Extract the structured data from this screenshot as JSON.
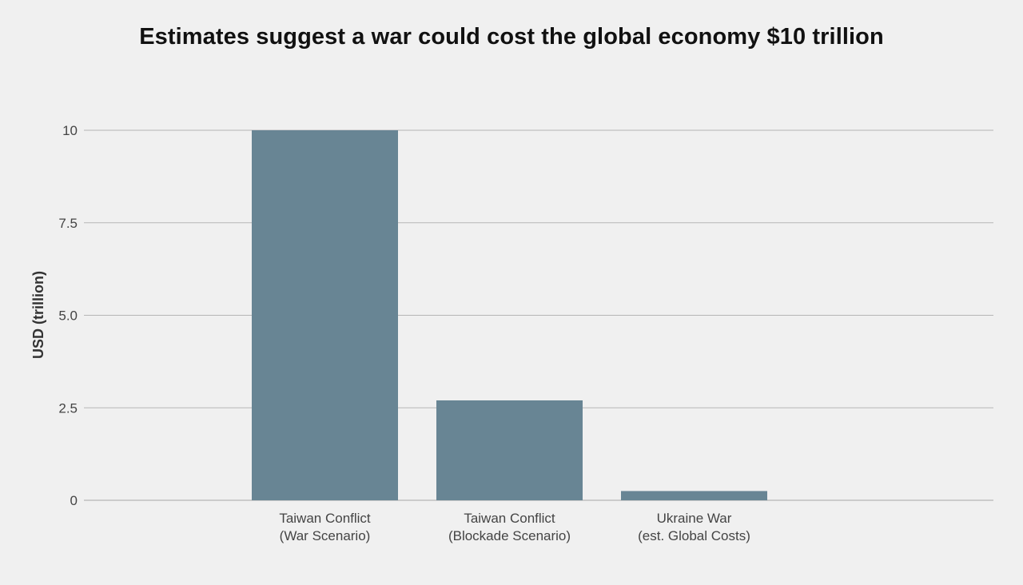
{
  "chart_data": {
    "type": "bar",
    "title": "Estimates suggest a war could cost the global economy $10 trillion",
    "xlabel": "",
    "ylabel": "USD (trillion)",
    "ylim": [
      0,
      10
    ],
    "yticks": [
      0,
      2.5,
      5.0,
      7.5,
      10
    ],
    "ytick_labels": [
      "0",
      "2.5",
      "5.0",
      "7.5",
      "10"
    ],
    "grid": true,
    "categories": [
      [
        "Taiwan Conflict",
        "(War Scenario)"
      ],
      [
        "Taiwan Conflict",
        "(Blockade Scenario)"
      ],
      [
        "Ukraine War",
        "(est. Global Costs)"
      ]
    ],
    "values": [
      10,
      2.7,
      0.25
    ],
    "colors": {
      "bar": "#688594",
      "grid": "#b5b5b5",
      "background": "#f0f0f0"
    }
  }
}
